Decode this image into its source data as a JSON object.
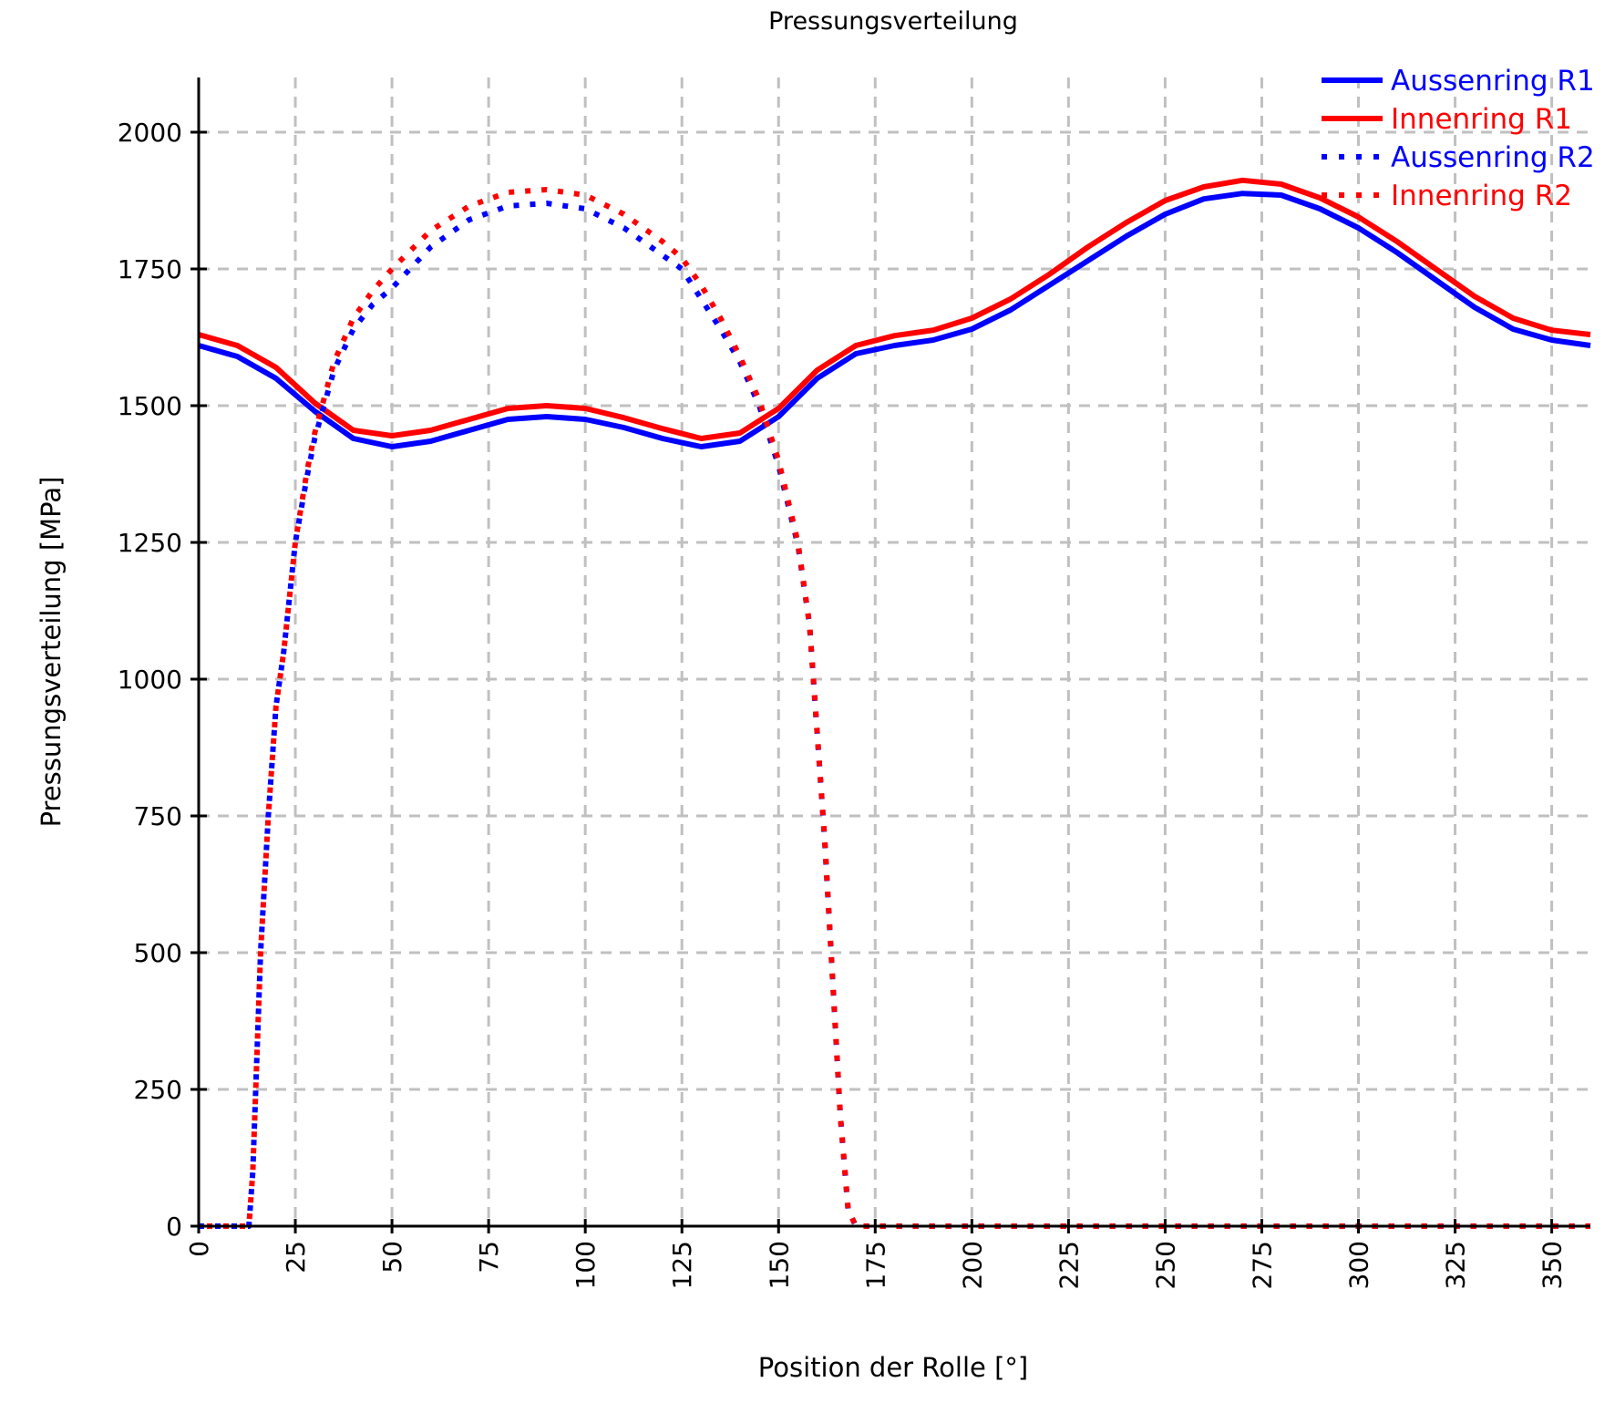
{
  "chart_data": {
    "type": "line",
    "title": "Pressungsverteilung",
    "xlabel": "Position der Rolle [°]",
    "ylabel": "Pressungsverteilung [MPa]",
    "xlim": [
      0,
      360
    ],
    "ylim": [
      0,
      2100
    ],
    "xticks": [
      0,
      25,
      50,
      75,
      100,
      125,
      150,
      175,
      200,
      225,
      250,
      275,
      300,
      325,
      350
    ],
    "yticks": [
      0,
      250,
      500,
      750,
      1000,
      1250,
      1500,
      1750,
      2000
    ],
    "grid": true,
    "legend_position": "top-right",
    "series": [
      {
        "name": "Aussenring R1",
        "color": "#0000ff",
        "style": "solid",
        "x": [
          0,
          10,
          20,
          30,
          40,
          50,
          60,
          70,
          80,
          90,
          100,
          110,
          120,
          130,
          140,
          150,
          160,
          170,
          180,
          190,
          200,
          210,
          220,
          230,
          240,
          250,
          260,
          270,
          280,
          290,
          300,
          310,
          320,
          330,
          340,
          350,
          360
        ],
        "y": [
          1610,
          1590,
          1550,
          1490,
          1440,
          1425,
          1435,
          1455,
          1475,
          1480,
          1475,
          1460,
          1440,
          1425,
          1435,
          1480,
          1550,
          1595,
          1610,
          1620,
          1640,
          1675,
          1720,
          1765,
          1810,
          1850,
          1878,
          1888,
          1885,
          1860,
          1825,
          1780,
          1730,
          1680,
          1640,
          1620,
          1610
        ]
      },
      {
        "name": "Innenring R1",
        "color": "#ff0000",
        "style": "solid",
        "x": [
          0,
          10,
          20,
          30,
          40,
          50,
          60,
          70,
          80,
          90,
          100,
          110,
          120,
          130,
          140,
          150,
          160,
          170,
          180,
          190,
          200,
          210,
          220,
          230,
          240,
          250,
          260,
          270,
          280,
          290,
          300,
          310,
          320,
          330,
          340,
          350,
          360
        ],
        "y": [
          1630,
          1610,
          1570,
          1505,
          1455,
          1445,
          1455,
          1475,
          1495,
          1500,
          1495,
          1478,
          1458,
          1440,
          1450,
          1495,
          1565,
          1610,
          1628,
          1638,
          1660,
          1695,
          1740,
          1790,
          1835,
          1875,
          1900,
          1912,
          1905,
          1880,
          1845,
          1800,
          1750,
          1700,
          1660,
          1638,
          1630
        ]
      },
      {
        "name": "Aussenring R2",
        "color": "#0000ff",
        "style": "dotted",
        "x": [
          0,
          13,
          14,
          16,
          18,
          20,
          22,
          25,
          28,
          30,
          35,
          40,
          45,
          50,
          60,
          70,
          80,
          90,
          100,
          110,
          120,
          125,
          130,
          135,
          140,
          145,
          150,
          155,
          158,
          160,
          162,
          164,
          166,
          168,
          170,
          360
        ],
        "y": [
          0,
          0,
          100,
          500,
          750,
          950,
          1050,
          1250,
          1370,
          1440,
          1565,
          1640,
          1685,
          1715,
          1790,
          1840,
          1865,
          1870,
          1860,
          1825,
          1775,
          1750,
          1695,
          1640,
          1580,
          1500,
          1390,
          1245,
          1100,
          900,
          700,
          450,
          200,
          30,
          0,
          0
        ]
      },
      {
        "name": "Innenring R2",
        "color": "#ff0000",
        "style": "dotted",
        "x": [
          0,
          13,
          14,
          16,
          18,
          20,
          22,
          25,
          28,
          30,
          35,
          40,
          45,
          50,
          60,
          70,
          80,
          90,
          100,
          110,
          120,
          125,
          130,
          135,
          140,
          145,
          150,
          155,
          158,
          160,
          162,
          164,
          166,
          168,
          170,
          360
        ],
        "y": [
          0,
          0,
          100,
          500,
          750,
          950,
          1050,
          1250,
          1380,
          1450,
          1580,
          1660,
          1710,
          1750,
          1820,
          1865,
          1890,
          1895,
          1885,
          1850,
          1800,
          1770,
          1720,
          1660,
          1590,
          1510,
          1400,
          1250,
          1100,
          900,
          700,
          450,
          200,
          30,
          0,
          0
        ]
      }
    ]
  }
}
